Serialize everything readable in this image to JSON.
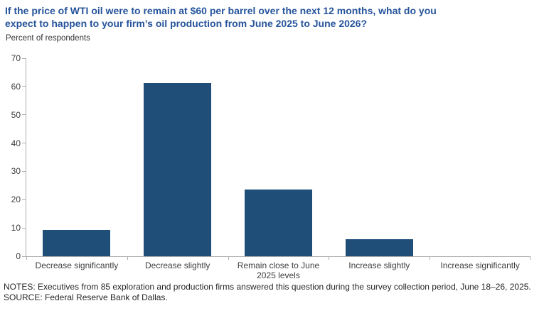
{
  "header": {
    "title_line1": "If the price of WTI oil were to remain at $60 per barrel over the next 12 months, what do you",
    "title_line2": "expect to happen to your firm’s oil production from June 2025 to June 2026?",
    "unit_note": "Percent of respondents"
  },
  "chart_data": {
    "type": "bar",
    "title": "If the price of WTI oil were to remain at $60 per barrel over the next 12 months, what do you expect to happen to your firm’s oil production from June 2025 to June 2026?",
    "categories": [
      "Decrease significantly",
      "Decrease slightly",
      "Remain close to June 2025 levels",
      "Increase slightly",
      "Increase significantly"
    ],
    "values": [
      9.4,
      61.2,
      23.5,
      5.9,
      0
    ],
    "xlabel": "",
    "ylabel": "Percent of respondents",
    "ylim": [
      0,
      70
    ],
    "yticks": [
      0,
      10,
      20,
      30,
      40,
      50,
      60,
      70
    ],
    "grid": false,
    "legend": "none",
    "bar_color": "#1F4E79"
  },
  "colors": {
    "title_blue": "#26549B",
    "bar_blue": "#1F4E79",
    "axis_gray": "#ADADAD",
    "label_gray": "#3F3F3F"
  },
  "footnotes": {
    "notes": "NOTES: Executives from 85 exploration and production firms answered this question during the survey collection period, June 18–26, 2025.",
    "source": "SOURCE: Federal Reserve Bank of Dallas."
  }
}
